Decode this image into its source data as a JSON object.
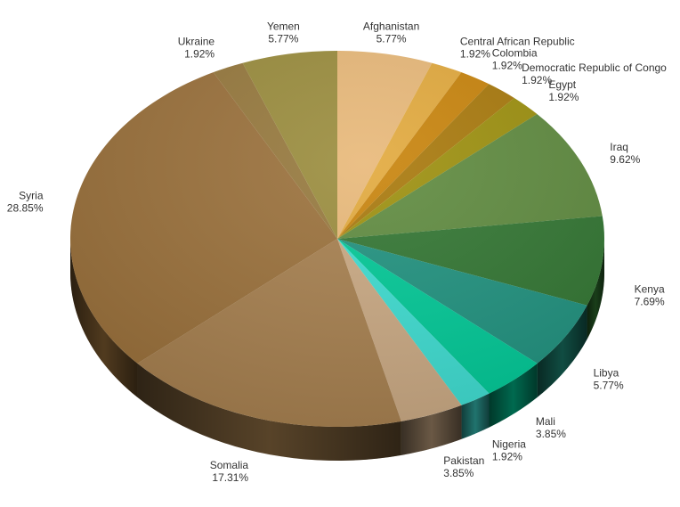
{
  "chart_data": {
    "type": "pie",
    "style": "3d",
    "slices": [
      {
        "label": "Afghanistan",
        "value": 5.77,
        "display": "5.77%",
        "color": "#E8B878"
      },
      {
        "label": "Central African Republic",
        "value": 1.92,
        "display": "1.92%",
        "color": "#E2A93C"
      },
      {
        "label": "Colombia",
        "value": 1.92,
        "display": "1.92%",
        "color": "#C8830A"
      },
      {
        "label": "Democratic Republic of Congo",
        "value": 1.92,
        "display": "1.92%",
        "color": "#A8780A"
      },
      {
        "label": "Egypt",
        "value": 1.92,
        "display": "1.92%",
        "color": "#9C8F0C"
      },
      {
        "label": "Iraq",
        "value": 9.62,
        "display": "9.62%",
        "color": "#5E8A3E"
      },
      {
        "label": "Kenya",
        "value": 7.69,
        "display": "7.69%",
        "color": "#317531"
      },
      {
        "label": "Libya",
        "value": 5.77,
        "display": "5.77%",
        "color": "#1F917E"
      },
      {
        "label": "Mali",
        "value": 3.85,
        "display": "3.85%",
        "color": "#00C896"
      },
      {
        "label": "Nigeria",
        "value": 1.92,
        "display": "1.92%",
        "color": "#3DDCD0"
      },
      {
        "label": "Pakistan",
        "value": 3.85,
        "display": "3.85%",
        "color": "#C9A882"
      },
      {
        "label": "Somalia",
        "value": 17.31,
        "display": "17.31%",
        "color": "#A67F4E"
      },
      {
        "label": "Syria",
        "value": 28.85,
        "display": "28.85%",
        "color": "#9A703A"
      },
      {
        "label": "Ukraine",
        "value": 1.92,
        "display": "1.92%",
        "color": "#96783C"
      },
      {
        "label": "Yemen",
        "value": 5.77,
        "display": "5.77%",
        "color": "#9A8C3C"
      }
    ]
  }
}
